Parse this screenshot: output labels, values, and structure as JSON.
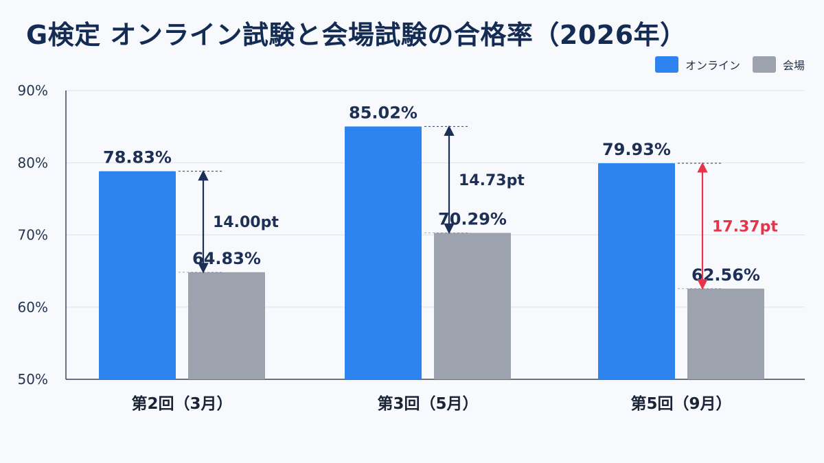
{
  "title": "G検定 オンライン試験と会場試験の合格率（2026年）",
  "legend": [
    {
      "label": "オンライン",
      "color": "#2d84ee"
    },
    {
      "label": "会場",
      "color": "#9ca3ae"
    }
  ],
  "colors": {
    "diff_normal": "#1d2f55",
    "diff_highlight": "#e8344a"
  },
  "chart_data": {
    "type": "bar",
    "title": "G検定 オンライン試験と会場試験の合格率（2026年）",
    "categories": [
      "第2回（3月）",
      "第3回（5月）",
      "第5回（9月）"
    ],
    "series": [
      {
        "name": "オンライン",
        "values": [
          78.83,
          85.02,
          79.93
        ],
        "labels": [
          "78.83%",
          "85.02%",
          "79.93%"
        ]
      },
      {
        "name": "会場",
        "values": [
          64.83,
          70.29,
          62.56
        ],
        "labels": [
          "64.83%",
          "70.29%",
          "62.56%"
        ]
      }
    ],
    "differences": [
      {
        "label": "14.00pt",
        "highlight": false
      },
      {
        "label": "14.73pt",
        "highlight": false
      },
      {
        "label": "17.37pt",
        "highlight": true
      }
    ],
    "ylim": [
      50,
      90
    ],
    "yticks": [
      50,
      60,
      70,
      80,
      90
    ],
    "ytick_labels": [
      "50%",
      "60%",
      "70%",
      "80%",
      "90%"
    ],
    "grid": true,
    "legend_position": "top-right",
    "xlabel": "",
    "ylabel": ""
  }
}
